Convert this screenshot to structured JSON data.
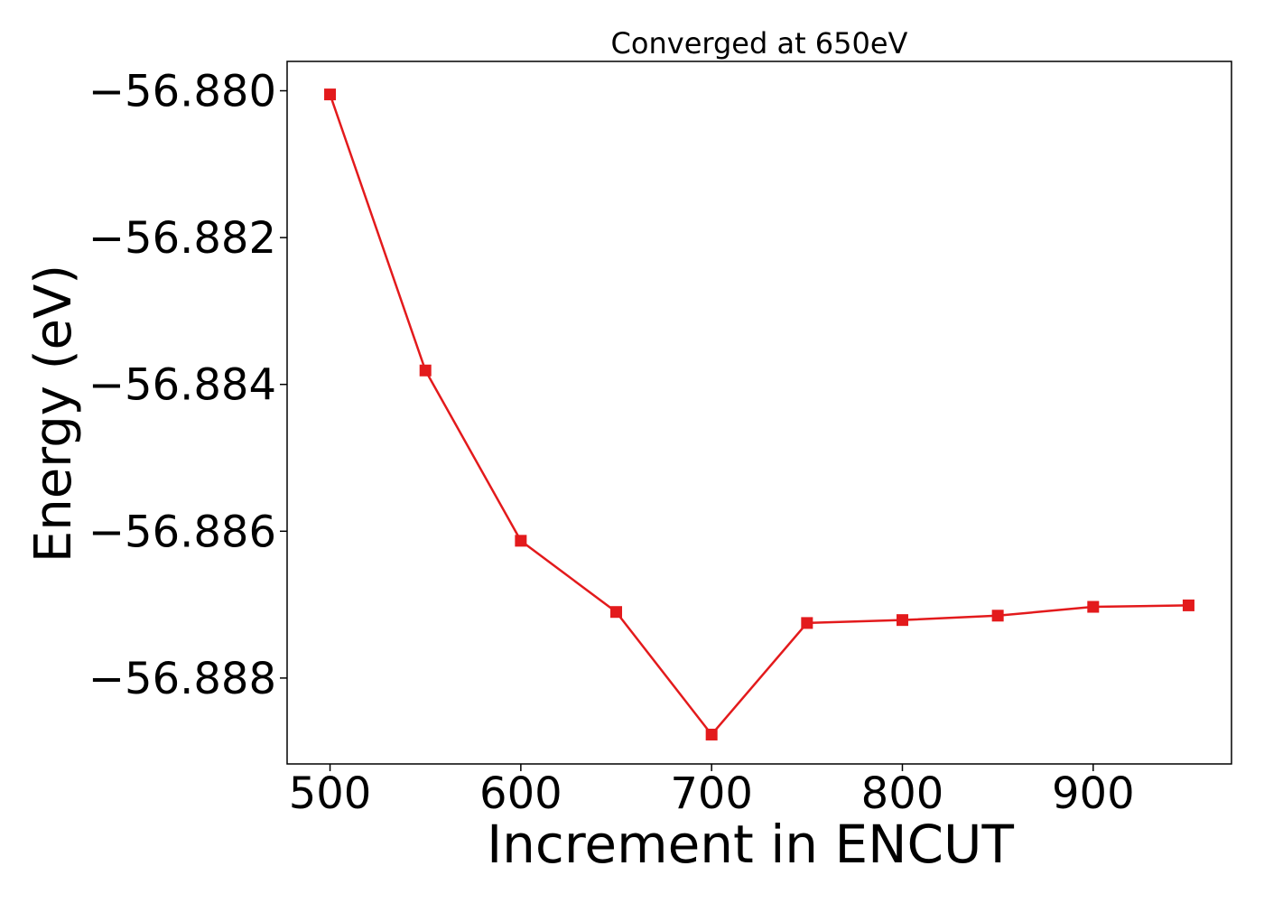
{
  "chart_data": {
    "type": "line",
    "title": "Converged at 650eV",
    "xlabel": "Increment in ENCUT",
    "ylabel": "Energy (eV)",
    "x": [
      500,
      550,
      600,
      650,
      700,
      750,
      800,
      850,
      900,
      950
    ],
    "series": [
      {
        "values": [
          -56.88005,
          -56.88381,
          -56.88613,
          -56.8871,
          -56.88877,
          -56.88725,
          -56.88721,
          -56.88715,
          -56.88703,
          -56.88701
        ],
        "color": "#e31a1c",
        "marker": "square"
      }
    ],
    "xlim": [
      477.5,
      972.5
    ],
    "ylim": [
      -56.88917,
      -56.8796
    ],
    "xticks": [
      500,
      600,
      700,
      800,
      900
    ],
    "xtick_labels": [
      "500",
      "600",
      "700",
      "800",
      "900"
    ],
    "yticks": [
      -56.88,
      -56.882,
      -56.884,
      -56.886,
      -56.888
    ],
    "ytick_labels": [
      "−56.880",
      "−56.882",
      "−56.884",
      "−56.886",
      "−56.888"
    ],
    "grid": false,
    "legend": "none"
  }
}
